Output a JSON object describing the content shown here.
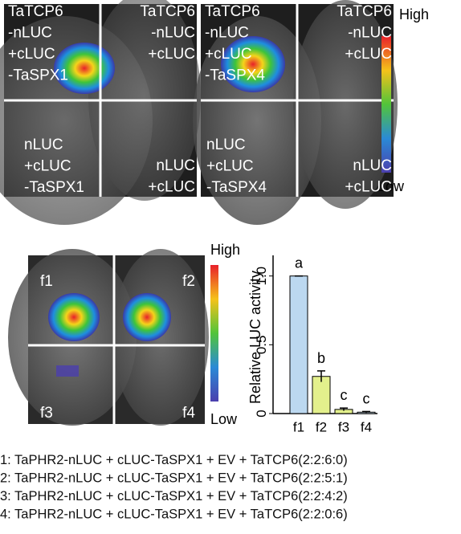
{
  "top_panel": {
    "cells": [
      {
        "lines": [
          "TaTCP6",
          "-nLUC",
          "+cLUC",
          "-TaSPX1"
        ]
      },
      {
        "lines": [
          "TaTCP6",
          "-nLUC",
          "+cLUC"
        ]
      },
      {
        "lines": [
          "TaTCP6",
          "-nLUC",
          "+cLUC",
          "-TaSPX4"
        ]
      },
      {
        "lines": [
          "TaTCP6",
          "-nLUC",
          "+cLUC"
        ]
      },
      {
        "lines": [
          "nLUC",
          "+cLUC",
          "-TaSPX1"
        ]
      },
      {
        "lines": [
          "nLUC",
          "+cLUC"
        ]
      },
      {
        "lines": [
          "nLUC",
          "+cLUC",
          "-TaSPX4"
        ]
      },
      {
        "lines": [
          "nLUC",
          "+cLUC"
        ]
      }
    ],
    "scale": {
      "high": "High",
      "low": "Low"
    }
  },
  "bottom_panel": {
    "labels": [
      "f1",
      "f2",
      "f3",
      "f4"
    ],
    "scale": {
      "high": "High",
      "low": "Low"
    }
  },
  "chart_data": {
    "type": "bar",
    "y_label": "Relative LUC activity",
    "categories": [
      "f1",
      "f2",
      "f3",
      "f4"
    ],
    "values": [
      1.0,
      0.27,
      0.03,
      0.01
    ],
    "errors": [
      0.0,
      0.04,
      0.01,
      0.005
    ],
    "significance": [
      "a",
      "b",
      "c",
      "c"
    ],
    "colors": [
      "#bcd8f0",
      "#e3f08c",
      "#e3f08c",
      "#d9ecf8"
    ],
    "ylim": [
      0,
      1.15
    ],
    "yticks": [
      0,
      0.5,
      {
        "value": 1,
        "label": "1.0"
      }
    ]
  },
  "legend": {
    "lines": [
      "1: TaPHR2-nLUC + cLUC-TaSPX1 + EV + TaTCP6(2:2:6:0)",
      "2: TaPHR2-nLUC + cLUC-TaSPX1 + EV + TaTCP6(2:2:5:1)",
      "3: TaPHR2-nLUC + cLUC-TaSPX1 + EV + TaTCP6(2:2:4:2)",
      "4: TaPHR2-nLUC + cLUC-TaSPX1 + EV + TaTCP6(2:2:0:6)"
    ]
  }
}
